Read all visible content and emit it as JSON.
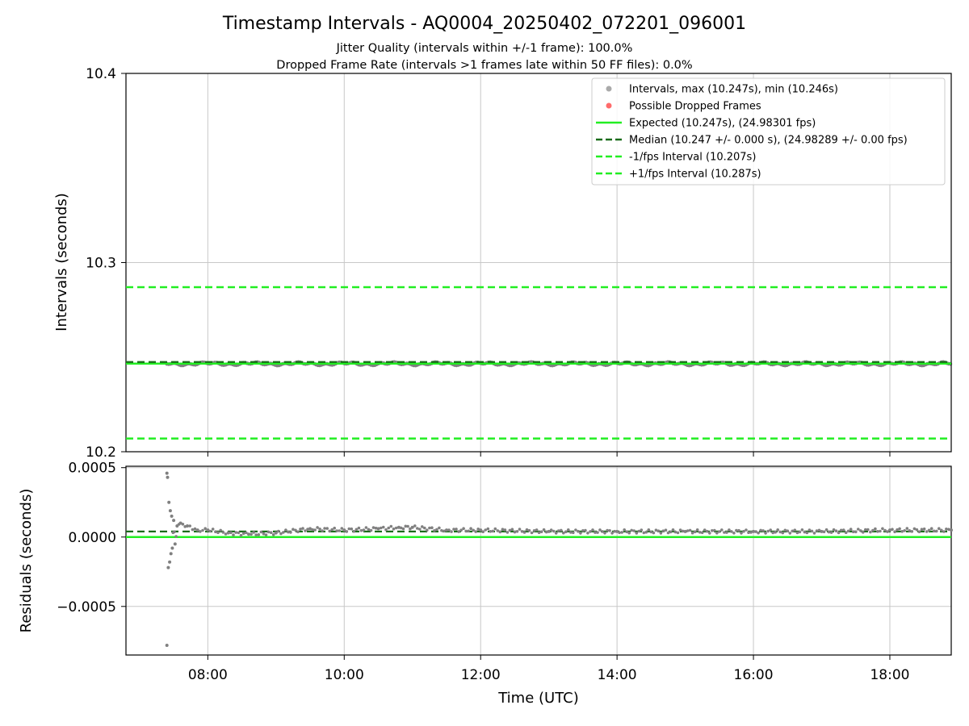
{
  "title": "Timestamp Intervals - AQ0004_20250402_072201_096001",
  "subtitle_line1": "Jitter Quality (intervals within +/-1 frame): 100.0%",
  "subtitle_line2": "Dropped Frame Rate (intervals >1 frames late within 50 FF files): 0.0%",
  "colors": {
    "points": "#808080",
    "dropped": "#ff6b6b",
    "expected": "#22ee22",
    "median": "#1a6b1a",
    "bounds": "#22ee22",
    "grid": "#c8c8c8"
  },
  "chart_data": [
    {
      "type": "scatter",
      "panel": "top",
      "ylabel": "Intervals (seconds)",
      "xlabel": "",
      "ylim": [
        10.2,
        10.4
      ],
      "xlim_hours": [
        6.8,
        18.9
      ],
      "yticks": [
        "10.2",
        "10.3",
        "10.4"
      ],
      "grid": true,
      "legend_position": "top-right",
      "legend": [
        {
          "kind": "dot",
          "color": "#aaaaaa",
          "label": "Intervals, max (10.247s), min (10.246s)"
        },
        {
          "kind": "dot",
          "color": "#ff6b6b",
          "label": "Possible Dropped Frames"
        },
        {
          "kind": "solid",
          "color": "#22ee22",
          "label": "Expected (10.247s), (24.98301 fps)"
        },
        {
          "kind": "dashed",
          "color": "#1a6b1a",
          "label": "Median (10.247 +/- 0.000 s), (24.98289 +/- 0.00 fps)"
        },
        {
          "kind": "dashed",
          "color": "#22ee22",
          "label": "-1/fps Interval (10.207s)"
        },
        {
          "kind": "dashed",
          "color": "#22ee22",
          "label": "+1/fps Interval (10.287s)"
        }
      ],
      "lines": {
        "expected": 10.247,
        "median": 10.247,
        "lower": 10.207,
        "upper": 10.287
      },
      "series": [
        {
          "name": "Intervals",
          "x_range_hours": [
            7.4,
            18.9
          ],
          "y_min": 10.246,
          "y_max": 10.247
        }
      ]
    },
    {
      "type": "scatter",
      "panel": "bottom",
      "ylabel": "Residuals (seconds)",
      "xlabel": "Time (UTC)",
      "ylim": [
        -0.00085,
        0.00051
      ],
      "xlim_hours": [
        6.8,
        18.9
      ],
      "yticks": [
        "0.0005",
        "0.0000",
        "−0.0005"
      ],
      "ytick_values": [
        0.0005,
        0.0,
        -0.0005
      ],
      "xticks": [
        "08:00",
        "10:00",
        "12:00",
        "14:00",
        "16:00",
        "18:00"
      ],
      "xtick_values_hours": [
        8,
        10,
        12,
        14,
        16,
        18
      ],
      "grid": true,
      "lines": {
        "expected": 0.0,
        "median": 4e-05
      },
      "series": [
        {
          "name": "Residuals",
          "x_hours": [
            7.4,
            7.4,
            7.41,
            7.42,
            7.43,
            7.44,
            7.45,
            7.46,
            7.47,
            7.48,
            7.5,
            7.52,
            7.55,
            7.6,
            7.7,
            7.85,
            8.0,
            8.3,
            8.6,
            9.0,
            9.5,
            10.0,
            10.5,
            10.8,
            11.0,
            11.5,
            12.0,
            13.0,
            14.0,
            15.0,
            16.0,
            17.0,
            18.0,
            18.9
          ],
          "y": [
            0.00046,
            -0.00078,
            0.00043,
            -0.00022,
            0.00025,
            -0.00018,
            0.00019,
            -0.00012,
            0.00015,
            -8e-05,
            0.00012,
            -5e-05,
            8e-05,
            0.0001,
            8e-05,
            5e-05,
            5e-05,
            3e-05,
            2e-05,
            3e-05,
            6e-05,
            5e-05,
            6e-05,
            7e-05,
            7e-05,
            5e-05,
            5e-05,
            4e-05,
            4e-05,
            4e-05,
            4e-05,
            4e-05,
            5e-05,
            5e-05
          ]
        }
      ]
    }
  ]
}
